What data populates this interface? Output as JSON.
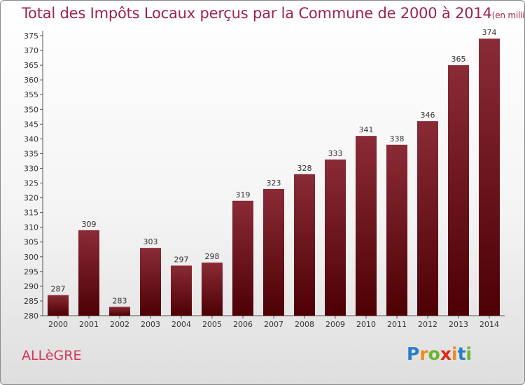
{
  "title": {
    "main": "Total des Impôts Locaux perçus par la Commune de 2000 à 2014",
    "unit": "(en milliers d'€)"
  },
  "commune": "ALLèGRE",
  "logo": {
    "letters": [
      "P",
      "r",
      "o",
      "x",
      "i",
      "t",
      "i"
    ],
    "colors": [
      "#2a7cc7",
      "#f08a1c",
      "#6ab42d",
      "#e3271b",
      "#f08a1c",
      "#2a7cc7",
      "#6ab42d"
    ]
  },
  "colors": {
    "bar_top": "#8a2b36",
    "bar_bottom": "#4d0004",
    "title": "#a0224a"
  },
  "chart_data": {
    "type": "bar",
    "categories": [
      "2000",
      "2001",
      "2002",
      "2003",
      "2004",
      "2005",
      "2006",
      "2007",
      "2008",
      "2009",
      "2010",
      "2011",
      "2012",
      "2013",
      "2014"
    ],
    "values": [
      287,
      309,
      283,
      303,
      297,
      298,
      319,
      323,
      328,
      333,
      341,
      338,
      346,
      365,
      374
    ],
    "ylim": [
      280,
      375
    ],
    "ytick_step": 5,
    "grid": false
  }
}
